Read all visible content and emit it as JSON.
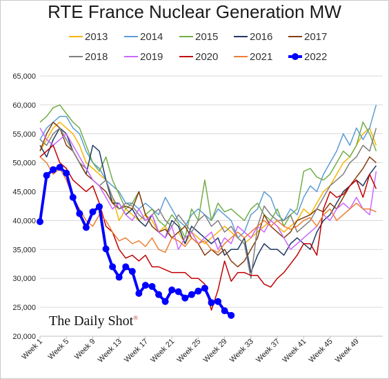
{
  "chart_data": {
    "type": "line",
    "title": "RTE France Nuclear Generation MW",
    "xlabel": "",
    "ylabel": "",
    "ylim": [
      20000,
      65000
    ],
    "xlim": [
      1,
      53
    ],
    "y_ticks": [
      "20,000",
      "25,000",
      "30,000",
      "35,000",
      "40,000",
      "45,000",
      "50,000",
      "55,000",
      "60,000",
      "65,000"
    ],
    "x_ticks": [
      {
        "x": 1,
        "label": "Week 1"
      },
      {
        "x": 5,
        "label": "Week 5"
      },
      {
        "x": 9,
        "label": "Week 9"
      },
      {
        "x": 13,
        "label": "Week 13"
      },
      {
        "x": 17,
        "label": "Week 17"
      },
      {
        "x": 21,
        "label": "Week 21"
      },
      {
        "x": 25,
        "label": "Week 25"
      },
      {
        "x": 29,
        "label": "Week 29"
      },
      {
        "x": 33,
        "label": "Week 33"
      },
      {
        "x": 37,
        "label": "Week 37"
      },
      {
        "x": 41,
        "label": "Week 41"
      },
      {
        "x": 45,
        "label": "Week 45"
      },
      {
        "x": 49,
        "label": "Week 49"
      }
    ],
    "grid": true,
    "legend": "top",
    "series": [
      {
        "name": "2013",
        "color": "#f5b400",
        "width": 1.5,
        "values": [
          52000,
          54000,
          56000,
          57000,
          56000,
          55000,
          53000,
          50000,
          49000,
          48000,
          47000,
          44000,
          40000,
          42000,
          41000,
          40000,
          41000,
          40000,
          38000,
          39000,
          37000,
          38000,
          36000,
          38000,
          37000,
          36000,
          37000,
          38000,
          39000,
          38000,
          37000,
          36000,
          37000,
          38000,
          39000,
          40000,
          39000,
          38000,
          39000,
          40000,
          42000,
          41000,
          43000,
          45000,
          46000,
          48000,
          50000,
          51000,
          53000,
          55000,
          56000,
          53000
        ]
      },
      {
        "name": "2014",
        "color": "#5b9bd5",
        "width": 1.5,
        "values": [
          54000,
          56000,
          57000,
          58000,
          58000,
          56000,
          55000,
          52000,
          50000,
          49000,
          47000,
          46000,
          45000,
          43000,
          43000,
          42000,
          43000,
          42000,
          41000,
          44000,
          42000,
          40000,
          39000,
          41000,
          42000,
          41000,
          40000,
          42000,
          41000,
          40000,
          37000,
          38000,
          41000,
          42000,
          45000,
          44000,
          41000,
          40000,
          42000,
          41000,
          44000,
          46000,
          45000,
          48000,
          50000,
          52000,
          55000,
          53000,
          56000,
          54000,
          56000,
          60000
        ]
      },
      {
        "name": "2015",
        "color": "#70ad47",
        "width": 1.5,
        "values": [
          57000,
          58000,
          59500,
          60000,
          58500,
          57000,
          56000,
          53000,
          50000,
          48500,
          51000,
          47000,
          44500,
          42000,
          43000,
          45000,
          41000,
          42000,
          40000,
          39000,
          41000,
          39500,
          37000,
          42000,
          40000,
          47000,
          40000,
          43000,
          41500,
          42000,
          41000,
          40000,
          42000,
          43000,
          41000,
          40000,
          42000,
          39000,
          41000,
          42000,
          48500,
          49000,
          47500,
          47000,
          48000,
          50000,
          52000,
          51000,
          53000,
          57000,
          55000,
          52000
        ]
      },
      {
        "name": "2016",
        "color": "#1f3864",
        "width": 1.5,
        "values": [
          53000,
          51000,
          54000,
          56000,
          55000,
          52000,
          50000,
          48000,
          53000,
          52000,
          47000,
          43000,
          43000,
          41000,
          42000,
          40000,
          39000,
          41000,
          38000,
          37000,
          40000,
          39000,
          36000,
          39000,
          38000,
          37000,
          36000,
          37000,
          34000,
          35000,
          35000,
          37000,
          31000,
          34000,
          36000,
          35000,
          35000,
          34000,
          36000,
          37000,
          36000,
          35000,
          38000,
          40000,
          41000,
          43000,
          45000,
          46000,
          47000,
          46000,
          48000,
          49500
        ]
      },
      {
        "name": "2017",
        "color": "#843c0c",
        "width": 1.5,
        "values": [
          52000,
          55000,
          57000,
          56000,
          53000,
          52000,
          50000,
          48000,
          47000,
          46000,
          45000,
          43000,
          42000,
          42500,
          42000,
          45000,
          41000,
          39000,
          38000,
          38500,
          37000,
          38000,
          39000,
          37000,
          36000,
          34000,
          35000,
          34000,
          35000,
          33000,
          32000,
          33000,
          35000,
          37000,
          41000,
          39000,
          38000,
          37000,
          38000,
          40000,
          40500,
          41000,
          42000,
          41500,
          43000,
          42000,
          44000,
          46000,
          47500,
          49000,
          51000,
          50000
        ]
      },
      {
        "name": "2018",
        "color": "#7f7f7f",
        "width": 1.5,
        "values": [
          54000,
          53000,
          55000,
          56000,
          54000,
          52000,
          50000,
          49000,
          47000,
          46000,
          47000,
          44000,
          42000,
          43000,
          42500,
          41000,
          40000,
          41000,
          42000,
          40000,
          39000,
          41000,
          39500,
          38000,
          40000,
          41000,
          39000,
          40000,
          38000,
          39000,
          37000,
          36000,
          30000,
          39000,
          42500,
          41000,
          40000,
          40000,
          41000,
          38000,
          39000,
          40000,
          42000,
          44000,
          46000,
          47000,
          48000,
          50000,
          51000,
          53000,
          52000,
          56000
        ]
      },
      {
        "name": "2019",
        "color": "#cc66ff",
        "width": 1.5,
        "values": [
          56000,
          54000,
          53000,
          54000,
          55000,
          53000,
          51000,
          49000,
          47000,
          46000,
          44000,
          42000,
          43000,
          41000,
          40000,
          42000,
          40000,
          41000,
          38000,
          37000,
          39000,
          35000,
          37000,
          38000,
          36000,
          37000,
          38000,
          35000,
          37000,
          36000,
          39000,
          38000,
          37000,
          39000,
          38000,
          40000,
          39000,
          37000,
          35000,
          36000,
          37000,
          38000,
          39000,
          41000,
          40000,
          42000,
          43000,
          42000,
          44000,
          42000,
          41000,
          48500
        ]
      },
      {
        "name": "2020",
        "color": "#c00000",
        "width": 1.5,
        "values": [
          51000,
          52000,
          53000,
          50000,
          49000,
          47000,
          46000,
          45000,
          46000,
          43000,
          39000,
          38000,
          35000,
          33500,
          34000,
          33000,
          34000,
          32000,
          32000,
          31500,
          31000,
          31000,
          31000,
          30000,
          30000,
          29000,
          24500,
          28000,
          33000,
          29500,
          31000,
          31000,
          30500,
          30500,
          29000,
          28500,
          30000,
          31000,
          32500,
          34000,
          36000,
          36000,
          34000,
          42000,
          45000,
          44000,
          44500,
          46000,
          47000,
          44000,
          48000,
          45500
        ]
      },
      {
        "name": "2021",
        "color": "#ed7d31",
        "width": 1.5,
        "values": [
          51000,
          50000,
          48000,
          49000,
          47000,
          44000,
          42000,
          40000,
          39000,
          41000,
          40000,
          38000,
          36500,
          37000,
          36000,
          36500,
          35500,
          37000,
          35000,
          34500,
          37000,
          36500,
          35500,
          37000,
          36000,
          36500,
          35000,
          34500,
          36000,
          37000,
          38000,
          37000,
          38000,
          39000,
          40000,
          39000,
          40000,
          39000,
          38500,
          39000,
          40000,
          40500,
          39000,
          41000,
          42000,
          40000,
          41000,
          42000,
          43000,
          42000,
          42000,
          41500
        ]
      },
      {
        "name": "2022",
        "color": "#0000ff",
        "width": 4,
        "marker": true,
        "values": [
          39800,
          47800,
          48800,
          49200,
          48200,
          44000,
          41200,
          38800,
          41500,
          42400,
          35100,
          32000,
          30200,
          32000,
          31200,
          27400,
          28800,
          28600,
          27200,
          26000,
          28000,
          27700,
          26600,
          27200,
          27800,
          28300,
          25800,
          26000,
          24400,
          23600
        ]
      }
    ]
  },
  "brand": {
    "name": "The Daily Shot",
    "mark": "®"
  }
}
